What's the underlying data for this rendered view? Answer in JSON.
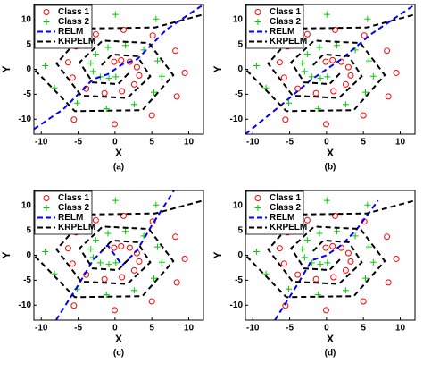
{
  "chart_data": [
    {
      "type": "scatter",
      "caption": "(a)",
      "xlabel": "X",
      "ylabel": "Y",
      "xlim": [
        -11,
        12
      ],
      "ylim": [
        -13,
        13
      ],
      "xticks": [
        -10,
        -5,
        0,
        5,
        10
      ],
      "yticks": [
        -10,
        -5,
        0,
        5,
        10
      ],
      "legend": "upper left",
      "series": [
        {
          "name": "Class 1",
          "color": "#ff0000",
          "marker": "o",
          "x": [
            -0.11,
            0.83,
            2.0,
            2.97,
            3.28,
            2.61,
            0.95,
            -1.42,
            -3.9,
            -5.76,
            -6.35,
            -5.28,
            -2.6,
            1.16,
            5.12,
            8.2,
            9.47,
            8.39,
            5.0,
            -0.05,
            -5.57
          ],
          "values": [
            1.5,
            1.82,
            1.5,
            0.42,
            -1.23,
            -3.03,
            -4.4,
            -4.79,
            -3.88,
            -1.68,
            1.4,
            4.6,
            7.03,
            7.91,
            6.78,
            3.71,
            -0.71,
            -5.44,
            -9.24,
            -11.0,
            -10.08
          ]
        },
        {
          "name": "Class 2",
          "color": "#00cc00",
          "marker": "+",
          "x": [
            0.11,
            -0.83,
            -2.0,
            -2.97,
            -3.28,
            -2.61,
            -0.95,
            1.42,
            3.9,
            5.76,
            6.35,
            5.28,
            2.6,
            -1.16,
            -5.12,
            -8.2,
            -9.47,
            -8.39,
            -5.0,
            0.05,
            5.57
          ],
          "values": [
            -1.5,
            -1.82,
            -1.5,
            -0.42,
            1.23,
            3.03,
            4.4,
            4.79,
            3.88,
            1.68,
            -1.4,
            -4.6,
            -7.03,
            -7.91,
            -6.78,
            -3.71,
            0.71,
            5.44,
            9.24,
            11.0,
            10.08
          ]
        },
        {
          "name": "RELM",
          "color": "#0000ff",
          "linestyle": "--",
          "x": [
            -11,
            -7,
            -3,
            -1,
            1,
            3,
            7,
            12
          ],
          "values": [
            -12,
            -8,
            -2,
            -1,
            1,
            2,
            8,
            13
          ]
        },
        {
          "name": "KRPELM",
          "color": "#000000",
          "linestyle": "--",
          "x": [
            1.82,
            0.42,
            -3.03,
            -4.79,
            -1.68,
            4.6,
            7.91,
            3.71,
            -5.44,
            -11,
            null,
            -1.82,
            -0.42,
            3.03,
            4.79,
            1.68,
            -4.6,
            -7.91,
            -3.71,
            5.44,
            12
          ],
          "values": [
            -0.83,
            -2.97,
            -2.61,
            1.42,
            5.76,
            5.28,
            -1.16,
            -8.2,
            -8.39,
            0.05,
            null,
            0.83,
            2.97,
            2.61,
            -1.42,
            -5.76,
            -5.28,
            1.16,
            8.2,
            8.39,
            11
          ]
        }
      ]
    },
    {
      "type": "scatter",
      "caption": "(b)",
      "xlabel": "X",
      "ylabel": "Y",
      "xlim": [
        -11,
        12
      ],
      "ylim": [
        -13,
        13
      ],
      "xticks": [
        -10,
        -5,
        0,
        5,
        10
      ],
      "yticks": [
        -10,
        -5,
        0,
        5,
        10
      ],
      "legend": "upper left",
      "series": [
        {
          "name": "Class 1",
          "color": "#ff0000",
          "marker": "o",
          "x": [
            -0.11,
            0.83,
            2.0,
            2.97,
            3.28,
            2.61,
            0.95,
            -1.42,
            -3.9,
            -5.76,
            -6.35,
            -5.28,
            -2.6,
            1.16,
            5.12,
            8.2,
            9.47,
            8.39,
            5.0,
            -0.05,
            -5.57
          ],
          "values": [
            1.5,
            1.82,
            1.5,
            0.42,
            -1.23,
            -3.03,
            -4.4,
            -4.79,
            -3.88,
            -1.68,
            1.4,
            4.6,
            7.03,
            7.91,
            6.78,
            3.71,
            -0.71,
            -5.44,
            -9.24,
            -11.0,
            -10.08
          ]
        },
        {
          "name": "Class 2",
          "color": "#00cc00",
          "marker": "+",
          "x": [
            0.11,
            -0.83,
            -2.0,
            -2.97,
            -3.28,
            -2.61,
            -0.95,
            1.42,
            3.9,
            5.76,
            6.35,
            5.28,
            2.6,
            -1.16,
            -5.12,
            -8.2,
            -9.47,
            -8.39,
            -5.0,
            0.05,
            5.57
          ],
          "values": [
            -1.5,
            -1.82,
            -1.5,
            -0.42,
            1.23,
            3.03,
            4.4,
            4.79,
            3.88,
            1.68,
            -1.4,
            -4.6,
            -7.03,
            -7.91,
            -6.78,
            -3.71,
            0.71,
            5.44,
            9.24,
            11.0,
            10.08
          ]
        },
        {
          "name": "RELM",
          "color": "#0000ff",
          "linestyle": "--",
          "x": [
            -11,
            -6,
            -2,
            0,
            2,
            6,
            12
          ],
          "values": [
            -13,
            -7,
            -2,
            0,
            2,
            7,
            13
          ]
        },
        {
          "name": "KRPELM",
          "color": "#000000",
          "linestyle": "--",
          "x": [
            1.82,
            0.42,
            -3.03,
            -4.79,
            -1.68,
            4.6,
            7.91,
            3.71,
            -5.44,
            -11,
            null,
            -1.82,
            -0.42,
            3.03,
            4.79,
            1.68,
            -4.6,
            -7.91,
            -3.71,
            5.44,
            12
          ],
          "values": [
            -0.83,
            -2.97,
            -2.61,
            1.42,
            5.76,
            5.28,
            -1.16,
            -8.2,
            -8.39,
            0.05,
            null,
            0.83,
            2.97,
            2.61,
            -1.42,
            -5.76,
            -5.28,
            1.16,
            8.2,
            8.39,
            11
          ]
        }
      ]
    },
    {
      "type": "scatter",
      "caption": "(c)",
      "xlabel": "X",
      "ylabel": "Y",
      "xlim": [
        -11,
        12
      ],
      "ylim": [
        -13,
        13
      ],
      "xticks": [
        -10,
        -5,
        0,
        5,
        10
      ],
      "yticks": [
        -10,
        -5,
        0,
        5,
        10
      ],
      "legend": "upper left",
      "series": [
        {
          "name": "Class 1",
          "color": "#ff0000",
          "marker": "o",
          "x": [
            -0.11,
            0.83,
            2.0,
            2.97,
            3.28,
            2.61,
            0.95,
            -1.42,
            -3.9,
            -5.76,
            -6.35,
            -5.28,
            -2.6,
            1.16,
            5.12,
            8.2,
            9.47,
            8.39,
            5.0,
            -0.05,
            -5.57
          ],
          "values": [
            1.5,
            1.82,
            1.5,
            0.42,
            -1.23,
            -3.03,
            -4.4,
            -4.79,
            -3.88,
            -1.68,
            1.4,
            4.6,
            7.03,
            7.91,
            6.78,
            3.71,
            -0.71,
            -5.44,
            -9.24,
            -11.0,
            -10.08
          ]
        },
        {
          "name": "Class 2",
          "color": "#00cc00",
          "marker": "+",
          "x": [
            0.11,
            -0.83,
            -2.0,
            -2.97,
            -3.28,
            -2.61,
            -0.95,
            1.42,
            3.9,
            5.76,
            6.35,
            5.28,
            2.6,
            -1.16,
            -5.12,
            -8.2,
            -9.47,
            -8.39,
            -5.0,
            0.05,
            5.57
          ],
          "values": [
            -1.5,
            -1.82,
            -1.5,
            -0.42,
            1.23,
            3.03,
            4.4,
            4.79,
            3.88,
            1.68,
            -1.4,
            -4.6,
            -7.03,
            -7.91,
            -6.78,
            -3.71,
            0.71,
            5.44,
            9.24,
            11.0,
            10.08
          ]
        },
        {
          "name": "RELM",
          "color": "#0000ff",
          "linestyle": "--",
          "x": [
            -8,
            -5,
            -3,
            -1,
            1,
            3,
            5,
            8
          ],
          "values": [
            -13,
            -6,
            -1,
            2,
            -2,
            1,
            6,
            13
          ]
        },
        {
          "name": "KRPELM",
          "color": "#000000",
          "linestyle": "--",
          "x": [
            1.82,
            0.42,
            -3.03,
            -4.79,
            -1.68,
            4.6,
            7.91,
            3.71,
            -5.44,
            -11,
            null,
            -1.82,
            -0.42,
            3.03,
            4.79,
            1.68,
            -4.6,
            -7.91,
            -3.71,
            5.44,
            12
          ],
          "values": [
            -0.83,
            -2.97,
            -2.61,
            1.42,
            5.76,
            5.28,
            -1.16,
            -8.2,
            -8.39,
            0.05,
            null,
            0.83,
            2.97,
            2.61,
            -1.42,
            -5.76,
            -5.28,
            1.16,
            8.2,
            8.39,
            11
          ]
        }
      ]
    },
    {
      "type": "scatter",
      "caption": "(d)",
      "xlabel": "X",
      "ylabel": "Y",
      "xlim": [
        -11,
        12
      ],
      "ylim": [
        -13,
        13
      ],
      "xticks": [
        -10,
        -5,
        0,
        5,
        10
      ],
      "yticks": [
        -10,
        -5,
        0,
        5,
        10
      ],
      "legend": "upper left",
      "series": [
        {
          "name": "Class 1",
          "color": "#ff0000",
          "marker": "o",
          "x": [
            -0.11,
            0.83,
            2.0,
            2.97,
            3.28,
            2.61,
            0.95,
            -1.42,
            -3.9,
            -5.76,
            -6.35,
            -5.28,
            -2.6,
            1.16,
            5.12,
            8.2,
            9.47,
            8.39,
            5.0,
            -0.05,
            -5.57
          ],
          "values": [
            1.5,
            1.82,
            1.5,
            0.42,
            -1.23,
            -3.03,
            -4.4,
            -4.79,
            -3.88,
            -1.68,
            1.4,
            4.6,
            7.03,
            7.91,
            6.78,
            3.71,
            -0.71,
            -5.44,
            -9.24,
            -11.0,
            -10.08
          ]
        },
        {
          "name": "Class 2",
          "color": "#00cc00",
          "marker": "+",
          "x": [
            0.11,
            -0.83,
            -2.0,
            -2.97,
            -3.28,
            -2.61,
            -0.95,
            1.42,
            3.9,
            5.76,
            6.35,
            5.28,
            2.6,
            -1.16,
            -5.12,
            -8.2,
            -9.47,
            -8.39,
            -5.0,
            0.05,
            5.57
          ],
          "values": [
            -1.5,
            -1.82,
            -1.5,
            -0.42,
            1.23,
            3.03,
            4.4,
            4.79,
            3.88,
            1.68,
            -1.4,
            -4.6,
            -7.03,
            -7.91,
            -6.78,
            -3.71,
            0.71,
            5.44,
            9.24,
            11.0,
            10.08
          ]
        },
        {
          "name": "RELM",
          "color": "#0000ff",
          "linestyle": "--",
          "x": [
            -7,
            -4,
            -2,
            0,
            2,
            4,
            7
          ],
          "values": [
            -13,
            -6,
            -1,
            0,
            2,
            5,
            11
          ]
        },
        {
          "name": "KRPELM",
          "color": "#000000",
          "linestyle": "--",
          "x": [
            1.82,
            0.42,
            -3.03,
            -4.79,
            -1.68,
            4.6,
            7.91,
            3.71,
            -5.44,
            -11,
            null,
            -1.82,
            -0.42,
            3.03,
            4.79,
            1.68,
            -4.6,
            -7.91,
            -3.71,
            5.44,
            12
          ],
          "values": [
            -0.83,
            -2.97,
            -2.61,
            1.42,
            5.76,
            5.28,
            -1.16,
            -8.2,
            -8.39,
            0.05,
            null,
            0.83,
            2.97,
            2.61,
            -1.42,
            -5.76,
            -5.28,
            1.16,
            8.2,
            8.39,
            11
          ]
        }
      ]
    }
  ]
}
